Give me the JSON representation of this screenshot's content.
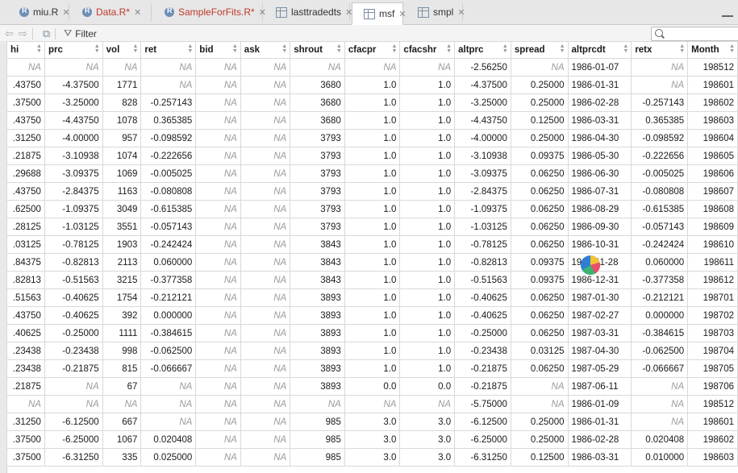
{
  "tabs": [
    {
      "name": "miu.R",
      "modified": false,
      "icon": "r-file-icon",
      "active": false
    },
    {
      "name": "Data.R*",
      "modified": true,
      "icon": "r-file-icon",
      "active": false
    },
    {
      "name": "SampleForFits.R*",
      "modified": true,
      "icon": "r-file-icon",
      "active": false
    },
    {
      "name": "lasttradedts",
      "modified": false,
      "icon": "data-grid-icon",
      "active": false
    },
    {
      "name": "msf",
      "modified": false,
      "icon": "data-grid-icon",
      "active": true
    },
    {
      "name": "smpl",
      "modified": false,
      "icon": "data-grid-icon",
      "active": false
    }
  ],
  "toolbar": {
    "filter_label": "Filter",
    "search_placeholder": ""
  },
  "columns": [
    "hi",
    "prc",
    "vol",
    "ret",
    "bid",
    "ask",
    "shrout",
    "cfacpr",
    "cfacshr",
    "altprc",
    "spread",
    "altprcdt",
    "retx",
    "Month"
  ],
  "rows": [
    [
      "NA",
      "NA",
      "NA",
      "NA",
      "NA",
      "NA",
      "NA",
      "NA",
      "NA",
      "-2.56250",
      "NA",
      "1986-01-07",
      "NA",
      "198512"
    ],
    [
      ".43750",
      "-4.37500",
      "1771",
      "NA",
      "NA",
      "NA",
      "3680",
      "1.0",
      "1.0",
      "-4.37500",
      "0.25000",
      "1986-01-31",
      "NA",
      "198601"
    ],
    [
      ".37500",
      "-3.25000",
      "828",
      "-0.257143",
      "NA",
      "NA",
      "3680",
      "1.0",
      "1.0",
      "-3.25000",
      "0.25000",
      "1986-02-28",
      "-0.257143",
      "198602"
    ],
    [
      ".43750",
      "-4.43750",
      "1078",
      "0.365385",
      "NA",
      "NA",
      "3680",
      "1.0",
      "1.0",
      "-4.43750",
      "0.12500",
      "1986-03-31",
      "0.365385",
      "198603"
    ],
    [
      ".31250",
      "-4.00000",
      "957",
      "-0.098592",
      "NA",
      "NA",
      "3793",
      "1.0",
      "1.0",
      "-4.00000",
      "0.25000",
      "1986-04-30",
      "-0.098592",
      "198604"
    ],
    [
      ".21875",
      "-3.10938",
      "1074",
      "-0.222656",
      "NA",
      "NA",
      "3793",
      "1.0",
      "1.0",
      "-3.10938",
      "0.09375",
      "1986-05-30",
      "-0.222656",
      "198605"
    ],
    [
      ".29688",
      "-3.09375",
      "1069",
      "-0.005025",
      "NA",
      "NA",
      "3793",
      "1.0",
      "1.0",
      "-3.09375",
      "0.06250",
      "1986-06-30",
      "-0.005025",
      "198606"
    ],
    [
      ".43750",
      "-2.84375",
      "1163",
      "-0.080808",
      "NA",
      "NA",
      "3793",
      "1.0",
      "1.0",
      "-2.84375",
      "0.06250",
      "1986-07-31",
      "-0.080808",
      "198607"
    ],
    [
      ".62500",
      "-1.09375",
      "3049",
      "-0.615385",
      "NA",
      "NA",
      "3793",
      "1.0",
      "1.0",
      "-1.09375",
      "0.06250",
      "1986-08-29",
      "-0.615385",
      "198608"
    ],
    [
      ".28125",
      "-1.03125",
      "3551",
      "-0.057143",
      "NA",
      "NA",
      "3793",
      "1.0",
      "1.0",
      "-1.03125",
      "0.06250",
      "1986-09-30",
      "-0.057143",
      "198609"
    ],
    [
      ".03125",
      "-0.78125",
      "1903",
      "-0.242424",
      "NA",
      "NA",
      "3843",
      "1.0",
      "1.0",
      "-0.78125",
      "0.06250",
      "1986-10-31",
      "-0.242424",
      "198610"
    ],
    [
      ".84375",
      "-0.82813",
      "2113",
      "0.060000",
      "NA",
      "NA",
      "3843",
      "1.0",
      "1.0",
      "-0.82813",
      "0.09375",
      "1986-11-28",
      "0.060000",
      "198611"
    ],
    [
      ".82813",
      "-0.51563",
      "3215",
      "-0.377358",
      "NA",
      "NA",
      "3843",
      "1.0",
      "1.0",
      "-0.51563",
      "0.09375",
      "1986-12-31",
      "-0.377358",
      "198612"
    ],
    [
      ".51563",
      "-0.40625",
      "1754",
      "-0.212121",
      "NA",
      "NA",
      "3893",
      "1.0",
      "1.0",
      "-0.40625",
      "0.06250",
      "1987-01-30",
      "-0.212121",
      "198701"
    ],
    [
      ".43750",
      "-0.40625",
      "392",
      "0.000000",
      "NA",
      "NA",
      "3893",
      "1.0",
      "1.0",
      "-0.40625",
      "0.06250",
      "1987-02-27",
      "0.000000",
      "198702"
    ],
    [
      ".40625",
      "-0.25000",
      "1111",
      "-0.384615",
      "NA",
      "NA",
      "3893",
      "1.0",
      "1.0",
      "-0.25000",
      "0.06250",
      "1987-03-31",
      "-0.384615",
      "198703"
    ],
    [
      ".23438",
      "-0.23438",
      "998",
      "-0.062500",
      "NA",
      "NA",
      "3893",
      "1.0",
      "1.0",
      "-0.23438",
      "0.03125",
      "1987-04-30",
      "-0.062500",
      "198704"
    ],
    [
      ".23438",
      "-0.21875",
      "815",
      "-0.066667",
      "NA",
      "NA",
      "3893",
      "1.0",
      "1.0",
      "-0.21875",
      "0.06250",
      "1987-05-29",
      "-0.066667",
      "198705"
    ],
    [
      ".21875",
      "NA",
      "67",
      "NA",
      "NA",
      "NA",
      "3893",
      "0.0",
      "0.0",
      "-0.21875",
      "NA",
      "1987-06-11",
      "NA",
      "198706"
    ],
    [
      "NA",
      "NA",
      "NA",
      "NA",
      "NA",
      "NA",
      "NA",
      "NA",
      "NA",
      "-5.75000",
      "NA",
      "1986-01-09",
      "NA",
      "198512"
    ],
    [
      ".31250",
      "-6.12500",
      "667",
      "NA",
      "NA",
      "NA",
      "985",
      "3.0",
      "3.0",
      "-6.12500",
      "0.25000",
      "1986-01-31",
      "NA",
      "198601"
    ],
    [
      ".37500",
      "-6.25000",
      "1067",
      "0.020408",
      "NA",
      "NA",
      "985",
      "3.0",
      "3.0",
      "-6.25000",
      "0.25000",
      "1986-02-28",
      "0.020408",
      "198602"
    ],
    [
      ".37500",
      "-6.31250",
      "335",
      "0.025000",
      "NA",
      "NA",
      "985",
      "3.0",
      "3.0",
      "-6.31250",
      "0.12500",
      "1986-03-31",
      "0.010000",
      "198603"
    ]
  ]
}
